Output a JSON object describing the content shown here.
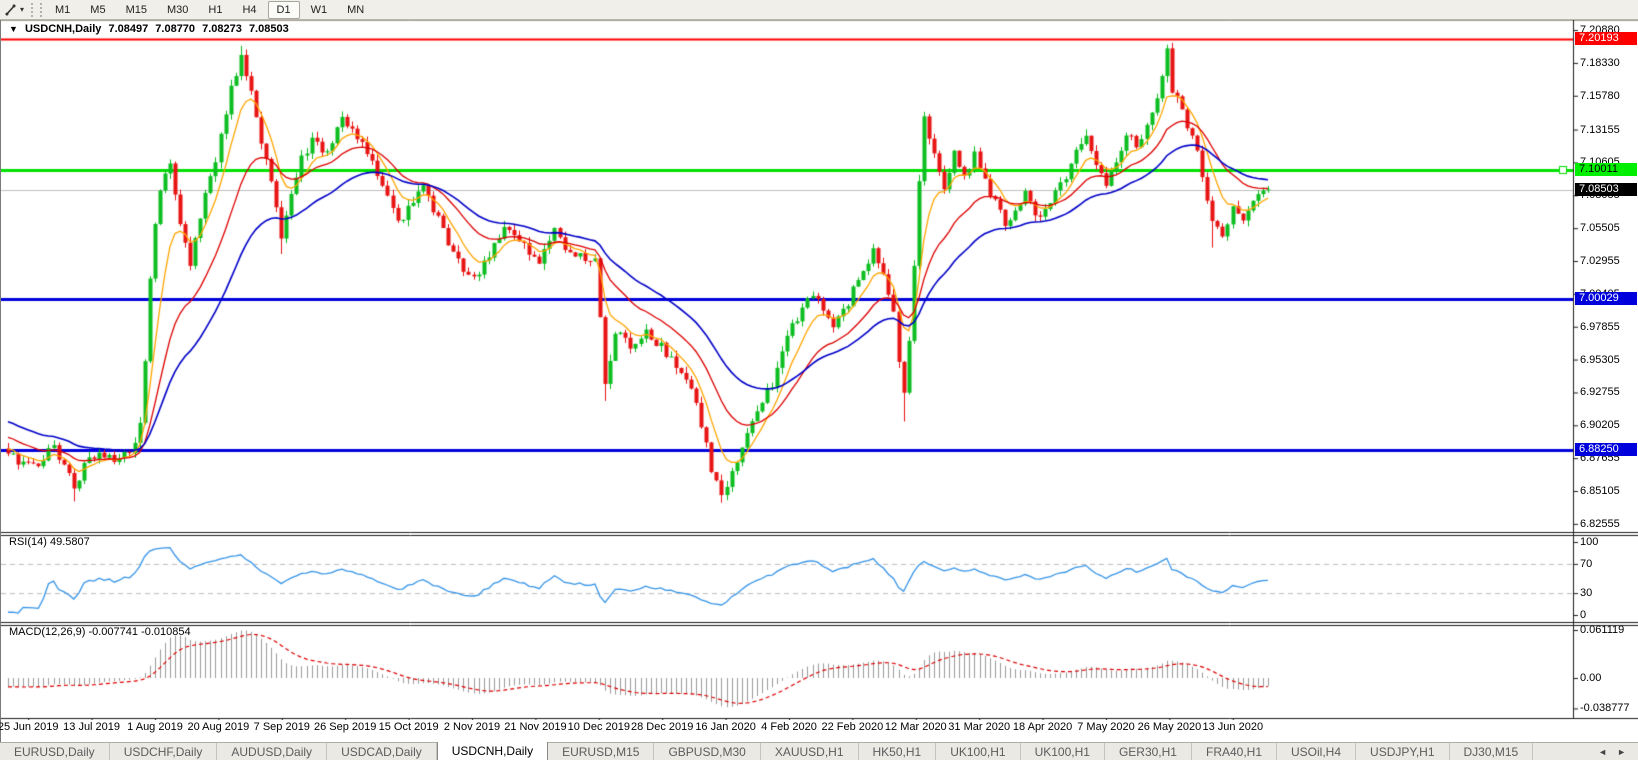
{
  "toolbar": {
    "timeframes": [
      "M1",
      "M5",
      "M15",
      "M30",
      "H1",
      "H4",
      "D1",
      "W1",
      "MN"
    ],
    "active_timeframe": "D1"
  },
  "icons": {
    "cursor_tool": "cursor-crosshair",
    "dropdown": "▾",
    "collapse": "▼",
    "scroll_left": "◄",
    "scroll_right": "►"
  },
  "chart_header": {
    "title": "USDCNH,Daily",
    "open": "7.08497",
    "high": "7.08770",
    "low": "7.08273",
    "close": "7.08503"
  },
  "chart_data": {
    "type": "candlestick",
    "symbol": "USDCNH",
    "timeframe": "Daily",
    "ohlc_display": {
      "open": 7.08497,
      "high": 7.0877,
      "low": 7.08273,
      "close": 7.08503
    },
    "price_axis": {
      "ticks": [
        "7.20880",
        "7.18330",
        "7.15780",
        "7.13155",
        "7.10605",
        "7.08055",
        "7.05505",
        "7.02955",
        "7.00405",
        "6.97855",
        "6.95305",
        "6.92755",
        "6.90205",
        "6.87655",
        "6.85105",
        "6.82555"
      ],
      "price_max": 7.2166,
      "price_min": 6.8208
    },
    "x_labels": [
      "25 Jun 2019",
      "13 Jul 2019",
      "1 Aug 2019",
      "20 Aug 2019",
      "7 Sep 2019",
      "26 Sep 2019",
      "15 Oct 2019",
      "2 Nov 2019",
      "21 Nov 2019",
      "10 Dec 2019",
      "28 Dec 2019",
      "16 Jan 2020",
      "4 Feb 2020",
      "22 Feb 2020",
      "12 Mar 2020",
      "31 Mar 2020",
      "18 Apr 2020",
      "7 May 2020",
      "26 May 2020",
      "13 Jun 2020"
    ],
    "candle_count": 250,
    "noise_seed": 41,
    "close_anchors": [
      [
        0,
        6.877
      ],
      [
        5,
        6.871
      ],
      [
        9,
        6.884
      ],
      [
        12,
        6.868
      ],
      [
        13,
        6.85
      ],
      [
        15,
        6.872
      ],
      [
        18,
        6.881
      ],
      [
        22,
        6.874
      ],
      [
        25,
        6.886
      ],
      [
        26,
        6.905
      ],
      [
        27,
        6.955
      ],
      [
        28,
        7.015
      ],
      [
        29,
        7.058
      ],
      [
        30,
        7.088
      ],
      [
        32,
        7.103
      ],
      [
        34,
        7.058
      ],
      [
        36,
        7.03
      ],
      [
        38,
        7.066
      ],
      [
        40,
        7.092
      ],
      [
        42,
        7.128
      ],
      [
        44,
        7.163
      ],
      [
        46,
        7.185
      ],
      [
        48,
        7.158
      ],
      [
        50,
        7.124
      ],
      [
        52,
        7.094
      ],
      [
        54,
        7.047
      ],
      [
        56,
        7.082
      ],
      [
        58,
        7.108
      ],
      [
        60,
        7.124
      ],
      [
        63,
        7.114
      ],
      [
        66,
        7.14
      ],
      [
        68,
        7.133
      ],
      [
        70,
        7.119
      ],
      [
        72,
        7.104
      ],
      [
        74,
        7.086
      ],
      [
        76,
        7.068
      ],
      [
        78,
        7.06
      ],
      [
        80,
        7.076
      ],
      [
        82,
        7.088
      ],
      [
        84,
        7.069
      ],
      [
        86,
        7.054
      ],
      [
        88,
        7.038
      ],
      [
        90,
        7.024
      ],
      [
        92,
        7.014
      ],
      [
        95,
        7.036
      ],
      [
        98,
        7.056
      ],
      [
        102,
        7.04
      ],
      [
        105,
        7.026
      ],
      [
        108,
        7.056
      ],
      [
        111,
        7.036
      ],
      [
        114,
        7.03
      ],
      [
        116,
        7.031
      ],
      [
        117,
        6.985
      ],
      [
        118,
        6.932
      ],
      [
        120,
        6.974
      ],
      [
        123,
        6.964
      ],
      [
        126,
        6.976
      ],
      [
        129,
        6.964
      ],
      [
        132,
        6.949
      ],
      [
        135,
        6.931
      ],
      [
        137,
        6.904
      ],
      [
        139,
        6.868
      ],
      [
        141,
        6.846
      ],
      [
        143,
        6.863
      ],
      [
        145,
        6.882
      ],
      [
        147,
        6.902
      ],
      [
        149,
        6.921
      ],
      [
        151,
        6.932
      ],
      [
        153,
        6.962
      ],
      [
        155,
        6.979
      ],
      [
        157,
        6.993
      ],
      [
        159,
        7.006
      ],
      [
        161,
        6.991
      ],
      [
        163,
        6.979
      ],
      [
        165,
        6.989
      ],
      [
        167,
        7.006
      ],
      [
        169,
        7.023
      ],
      [
        171,
        7.036
      ],
      [
        173,
        7.021
      ],
      [
        175,
        6.988
      ],
      [
        176,
        6.952
      ],
      [
        177,
        6.928
      ],
      [
        178,
        6.965
      ],
      [
        179,
        7.03
      ],
      [
        180,
        7.092
      ],
      [
        181,
        7.138
      ],
      [
        183,
        7.11
      ],
      [
        185,
        7.086
      ],
      [
        187,
        7.118
      ],
      [
        189,
        7.096
      ],
      [
        191,
        7.112
      ],
      [
        193,
        7.09
      ],
      [
        195,
        7.076
      ],
      [
        197,
        7.057
      ],
      [
        199,
        7.07
      ],
      [
        201,
        7.082
      ],
      [
        203,
        7.062
      ],
      [
        205,
        7.066
      ],
      [
        207,
        7.08
      ],
      [
        209,
        7.096
      ],
      [
        211,
        7.112
      ],
      [
        213,
        7.124
      ],
      [
        215,
        7.101
      ],
      [
        217,
        7.086
      ],
      [
        219,
        7.106
      ],
      [
        221,
        7.13
      ],
      [
        223,
        7.117
      ],
      [
        225,
        7.136
      ],
      [
        227,
        7.156
      ],
      [
        228,
        7.172
      ],
      [
        229,
        7.191
      ],
      [
        230,
        7.162
      ],
      [
        232,
        7.146
      ],
      [
        234,
        7.126
      ],
      [
        236,
        7.096
      ],
      [
        238,
        7.062
      ],
      [
        240,
        7.052
      ],
      [
        242,
        7.07
      ],
      [
        244,
        7.058
      ],
      [
        246,
        7.076
      ],
      [
        248,
        7.082
      ],
      [
        249,
        7.08503
      ]
    ],
    "wick_overrides": [
      {
        "i": 13,
        "low": 6.843
      },
      {
        "i": 46,
        "high": 7.1966
      },
      {
        "i": 54,
        "low": 7.035
      },
      {
        "i": 118,
        "low": 6.921
      },
      {
        "i": 141,
        "low": 6.842
      },
      {
        "i": 177,
        "low": 6.905
      },
      {
        "i": 229,
        "high": 7.1975
      },
      {
        "i": 238,
        "low": 7.04
      }
    ],
    "candle_colors": {
      "up": "#0cbe20",
      "down": "#e81414"
    },
    "moving_averages": [
      {
        "name": "ma-fast",
        "period": 7,
        "color": "#ffa500"
      },
      {
        "name": "ma-mid",
        "period": 18,
        "color": "#dd0000"
      },
      {
        "name": "ma-slow",
        "period": 34,
        "color": "#0000c8"
      }
    ],
    "horizontal_lines": [
      {
        "name": "resistance-line",
        "value": "7.20193",
        "price": 7.20193,
        "color": "#ff0000",
        "width": 2,
        "tag_bg": "#ff0000",
        "tag_fg": "#ffffff"
      },
      {
        "name": "pivot-line",
        "value": "7.10011",
        "price": 7.10011,
        "color": "#00e000",
        "width": 3,
        "tag_bg": "#00ee00",
        "tag_fg": "#000000",
        "handle": true
      },
      {
        "name": "support-line-1",
        "value": "7.00029",
        "price": 7.00029,
        "color": "#0000dd",
        "width": 3,
        "tag_bg": "#0000dd",
        "tag_fg": "#ffffff"
      },
      {
        "name": "support-line-2",
        "value": "6.88250",
        "price": 6.8825,
        "color": "#0000dd",
        "width": 3,
        "tag_bg": "#0000dd",
        "tag_fg": "#ffffff"
      }
    ],
    "current_price": {
      "value": "7.08503",
      "price": 7.08503,
      "line_color": "#c0c0c0",
      "tag_bg": "#000000",
      "tag_fg": "#ffffff"
    },
    "rsi": {
      "label_full": "RSI(14) 49.5807",
      "period": 14,
      "value": 49.5807,
      "levels": [
        "100",
        "70",
        "30",
        "0"
      ],
      "level_values": [
        100,
        70,
        30,
        0
      ],
      "dashed_levels": [
        70,
        30
      ],
      "color": "#3795e8",
      "range": [
        0,
        100
      ]
    },
    "macd": {
      "label_full": "MACD(12,26,9) -0.007741 -0.010854",
      "fast": 12,
      "slow": 26,
      "signal": 9,
      "value": -0.007741,
      "signal_value": -0.010854,
      "axis_ticks": [
        "0.061119",
        "0.00",
        "-0.038777"
      ],
      "axis_tick_values": [
        0.061119,
        0.0,
        -0.038777
      ],
      "histogram_color": "#9a9a9a",
      "signal_color": "#dd0000"
    }
  },
  "bottom_tabs": {
    "items": [
      {
        "label": "EURUSD,Daily",
        "active": false
      },
      {
        "label": "USDCHF,Daily",
        "active": false
      },
      {
        "label": "AUDUSD,Daily",
        "active": false
      },
      {
        "label": "USDCAD,Daily",
        "active": false
      },
      {
        "label": "USDCNH,Daily",
        "active": true
      },
      {
        "label": "EURUSD,M15",
        "active": false
      },
      {
        "label": "GBPUSD,M30",
        "active": false
      },
      {
        "label": "XAUUSD,H1",
        "active": false
      },
      {
        "label": "HK50,H1",
        "active": false
      },
      {
        "label": "UK100,H1",
        "active": false
      },
      {
        "label": "UK100,H1",
        "active": false
      },
      {
        "label": "GER30,H1",
        "active": false
      },
      {
        "label": "FRA40,H1",
        "active": false
      },
      {
        "label": "USOil,H4",
        "active": false
      },
      {
        "label": "USDJPY,H1",
        "active": false
      },
      {
        "label": "DJ30,M15",
        "active": false
      }
    ]
  }
}
